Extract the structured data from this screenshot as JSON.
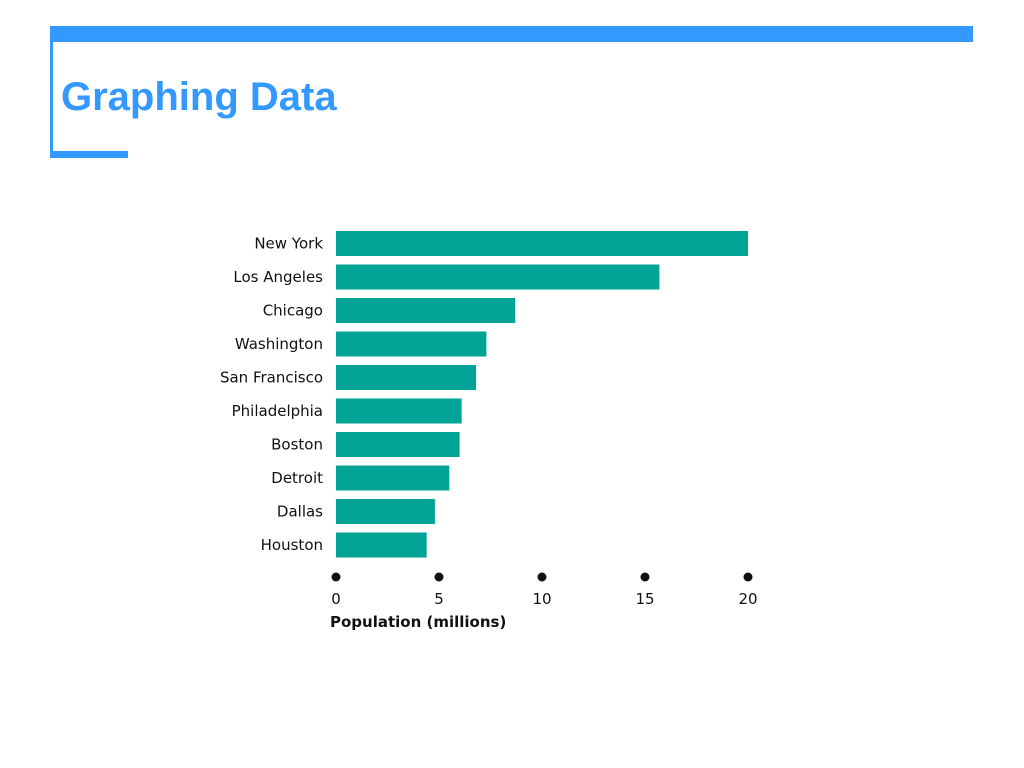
{
  "slide": {
    "title": "Graphing Data"
  },
  "colors": {
    "accent": "#3399ff",
    "bar": "#00a396",
    "text": "#111111"
  },
  "chart_data": {
    "type": "bar",
    "orientation": "horizontal",
    "categories": [
      "New York",
      "Los Angeles",
      "Chicago",
      "Washington",
      "San Francisco",
      "Philadelphia",
      "Boston",
      "Detroit",
      "Dallas",
      "Houston"
    ],
    "values": [
      20.0,
      15.7,
      8.7,
      7.3,
      6.8,
      6.1,
      6.0,
      5.5,
      4.8,
      4.4
    ],
    "xlabel": "Population (millions)",
    "ylabel": "",
    "xlim": [
      0,
      20
    ],
    "xticks": [
      "0",
      "5",
      "10",
      "15",
      "20"
    ],
    "grid": false,
    "legend": "none"
  }
}
